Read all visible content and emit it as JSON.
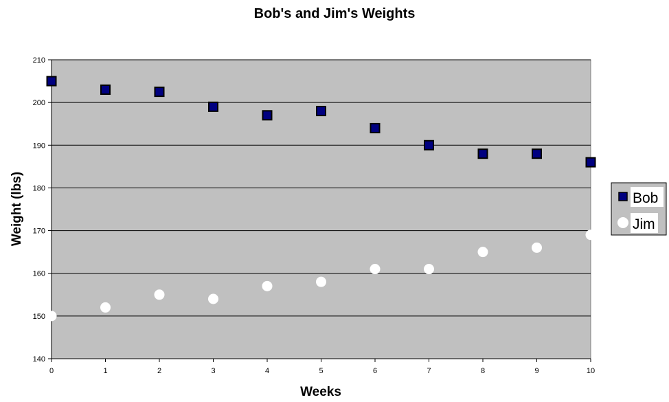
{
  "chart_data": {
    "type": "scatter",
    "title": "Bob's and Jim's Weights",
    "xlabel": "Weeks",
    "ylabel": "Weight (lbs)",
    "xlim": [
      0,
      10
    ],
    "ylim": [
      140,
      210
    ],
    "x_ticks": [
      0,
      1,
      2,
      3,
      4,
      5,
      6,
      7,
      8,
      9,
      10
    ],
    "y_ticks": [
      140,
      150,
      160,
      170,
      180,
      190,
      200,
      210
    ],
    "grid": true,
    "legend_position": "right",
    "plot_background": "#c0c0c0",
    "series": [
      {
        "name": "Bob",
        "marker": "square",
        "color": "#000080",
        "x": [
          0,
          1,
          2,
          3,
          4,
          5,
          6,
          7,
          8,
          9,
          10
        ],
        "y": [
          205,
          203,
          202.5,
          199,
          197,
          198,
          194,
          190,
          188,
          188,
          186
        ]
      },
      {
        "name": "Jim",
        "marker": "circle",
        "color": "#ffffff",
        "x": [
          0,
          1,
          2,
          3,
          4,
          5,
          6,
          7,
          8,
          9,
          10
        ],
        "y": [
          150,
          152,
          155,
          154,
          157,
          158,
          161,
          161,
          165,
          166,
          169
        ]
      }
    ]
  }
}
